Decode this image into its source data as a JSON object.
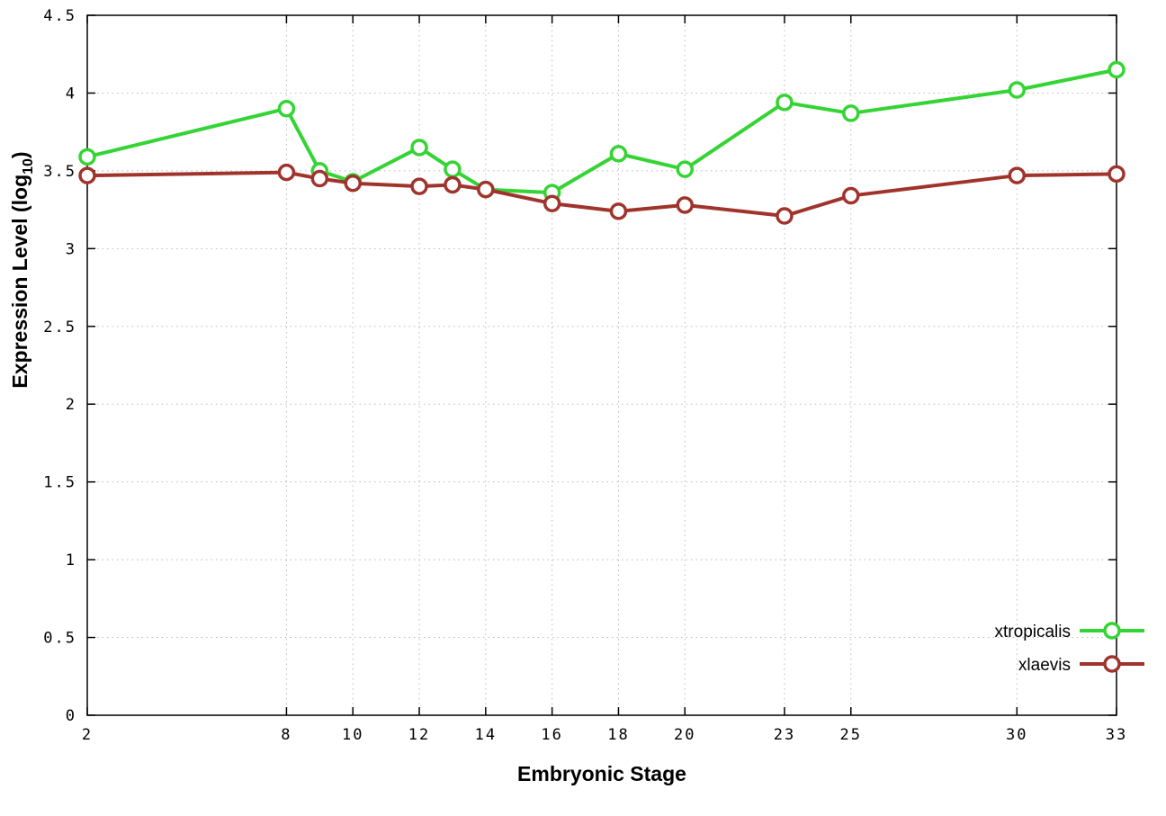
{
  "chart_data": {
    "type": "line",
    "x": [
      2,
      8,
      9,
      10,
      12,
      13,
      14,
      16,
      18,
      20,
      23,
      25,
      30,
      33
    ],
    "series": [
      {
        "name": "xtropicalis",
        "color": "#35d435",
        "values": [
          3.59,
          3.9,
          3.5,
          3.43,
          3.65,
          3.51,
          3.38,
          3.36,
          3.61,
          3.51,
          3.94,
          3.87,
          4.02,
          4.15
        ]
      },
      {
        "name": "xlaevis",
        "color": "#a0342c",
        "values": [
          3.47,
          3.49,
          3.45,
          3.42,
          3.4,
          3.41,
          3.38,
          3.29,
          3.24,
          3.28,
          3.21,
          3.34,
          3.47,
          3.48
        ]
      }
    ],
    "title": "",
    "xlabel": "Embryonic Stage",
    "ylabel": "Expression Level (log10)",
    "ylabel_parts": {
      "main": "Expression Level (log",
      "sub": "10",
      "end": ")"
    },
    "xlim": [
      2,
      33
    ],
    "ylim": [
      0,
      4.5
    ],
    "xticks": [
      2,
      8,
      10,
      12,
      14,
      16,
      18,
      20,
      23,
      25,
      30,
      33
    ],
    "xtick_labels": [
      "2",
      "8",
      "10",
      "12",
      "14",
      "16",
      "18",
      "20",
      "23",
      "25",
      "30",
      "33"
    ],
    "yticks": [
      0,
      0.5,
      1,
      1.5,
      2,
      2.5,
      3,
      3.5,
      4,
      4.5
    ],
    "ytick_labels": [
      "0",
      "0.5",
      "1",
      "1.5",
      "2",
      "2.5",
      "3",
      "3.5",
      "4",
      "4.5"
    ],
    "grid": true,
    "grid_color": "#bbbbbb",
    "border_color": "#000000",
    "background": "#ffffff",
    "legend_position": "bottom-right",
    "legend_entries": [
      "xtropicalis",
      "xlaevis"
    ]
  }
}
